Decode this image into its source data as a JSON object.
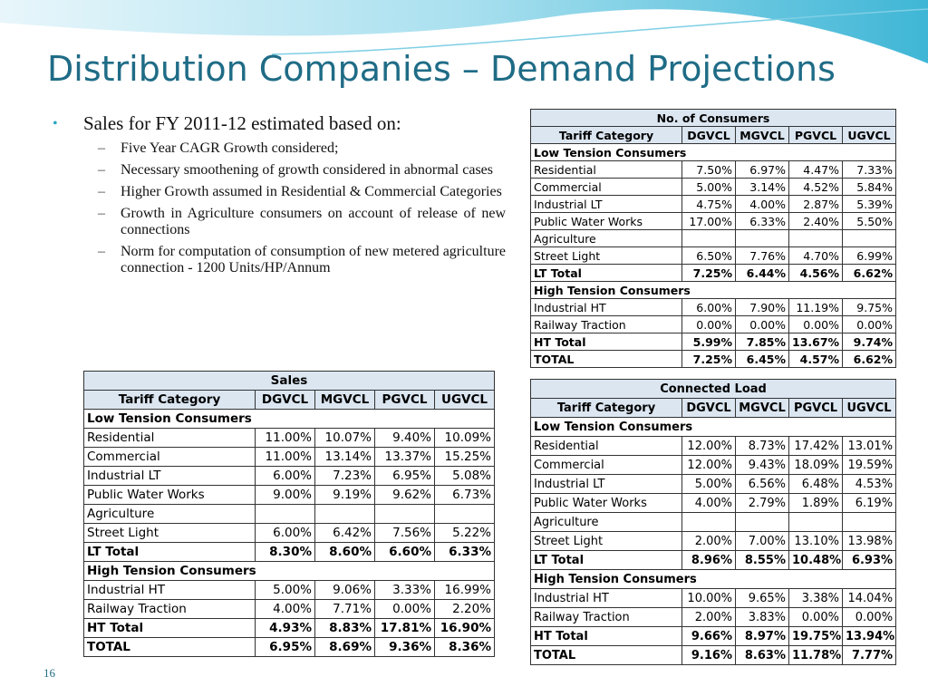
{
  "title": "Distribution Companies – Demand Projections",
  "bullets": {
    "main": "Sales for FY 2011-12 estimated based on:",
    "sub": [
      "Five Year CAGR Growth considered;",
      "Necessary smoothening of growth considered in abnormal cases",
      "Higher Growth assumed in Residential & Commercial Categories",
      "Growth in Agriculture consumers on account of release of new connections",
      "Norm for computation of consumption of new metered agriculture connection - 1200 Units/HP/Annum"
    ]
  },
  "columns": [
    "Tariff Category",
    "DGVCL",
    "MGVCL",
    "PGVCL",
    "UGVCL"
  ],
  "consumers": {
    "title": "No. of Consumers",
    "rows": [
      {
        "label": "Low Tension Consumers",
        "type": "section",
        "values": []
      },
      {
        "label": "Residential",
        "type": "row",
        "values": [
          "7.50%",
          "6.97%",
          "4.47%",
          "7.33%"
        ]
      },
      {
        "label": "Commercial",
        "type": "row",
        "values": [
          "5.00%",
          "3.14%",
          "4.52%",
          "5.84%"
        ]
      },
      {
        "label": "Industrial LT",
        "type": "row",
        "values": [
          "4.75%",
          "4.00%",
          "2.87%",
          "5.39%"
        ]
      },
      {
        "label": "Public Water Works",
        "type": "row",
        "values": [
          "17.00%",
          "6.33%",
          "2.40%",
          "5.50%"
        ]
      },
      {
        "label": "Agriculture",
        "type": "row",
        "values": [
          "",
          "",
          "",
          ""
        ]
      },
      {
        "label": "Street Light",
        "type": "row",
        "values": [
          "6.50%",
          "7.76%",
          "4.70%",
          "6.99%"
        ]
      },
      {
        "label": "LT Total",
        "type": "total",
        "values": [
          "7.25%",
          "6.44%",
          "4.56%",
          "6.62%"
        ]
      },
      {
        "label": "High Tension Consumers",
        "type": "section",
        "values": []
      },
      {
        "label": "Industrial HT",
        "type": "row",
        "values": [
          "6.00%",
          "7.90%",
          "11.19%",
          "9.75%"
        ]
      },
      {
        "label": "Railway Traction",
        "type": "row",
        "values": [
          "0.00%",
          "0.00%",
          "0.00%",
          "0.00%"
        ]
      },
      {
        "label": "HT Total",
        "type": "total",
        "values": [
          "5.99%",
          "7.85%",
          "13.67%",
          "9.74%"
        ]
      },
      {
        "label": "TOTAL",
        "type": "total",
        "values": [
          "7.25%",
          "6.45%",
          "4.57%",
          "6.62%"
        ]
      }
    ]
  },
  "sales": {
    "title": "Sales",
    "rows": [
      {
        "label": "Low Tension Consumers",
        "type": "section",
        "values": []
      },
      {
        "label": "Residential",
        "type": "row",
        "values": [
          "11.00%",
          "10.07%",
          "9.40%",
          "10.09%"
        ]
      },
      {
        "label": "Commercial",
        "type": "row",
        "values": [
          "11.00%",
          "13.14%",
          "13.37%",
          "15.25%"
        ]
      },
      {
        "label": "Industrial LT",
        "type": "row",
        "values": [
          "6.00%",
          "7.23%",
          "6.95%",
          "5.08%"
        ]
      },
      {
        "label": "Public Water Works",
        "type": "row",
        "values": [
          "9.00%",
          "9.19%",
          "9.62%",
          "6.73%"
        ]
      },
      {
        "label": "Agriculture",
        "type": "row",
        "values": [
          "",
          "",
          "",
          ""
        ]
      },
      {
        "label": "Street Light",
        "type": "row",
        "values": [
          "6.00%",
          "6.42%",
          "7.56%",
          "5.22%"
        ]
      },
      {
        "label": "LT Total",
        "type": "total",
        "values": [
          "8.30%",
          "8.60%",
          "6.60%",
          "6.33%"
        ]
      },
      {
        "label": "High Tension Consumers",
        "type": "section",
        "values": []
      },
      {
        "label": "Industrial HT",
        "type": "row",
        "values": [
          "5.00%",
          "9.06%",
          "3.33%",
          "16.99%"
        ]
      },
      {
        "label": "Railway Traction",
        "type": "row",
        "values": [
          "4.00%",
          "7.71%",
          "0.00%",
          "2.20%"
        ]
      },
      {
        "label": "HT Total",
        "type": "total",
        "values": [
          "4.93%",
          "8.83%",
          "17.81%",
          "16.90%"
        ]
      },
      {
        "label": "TOTAL",
        "type": "total",
        "values": [
          "6.95%",
          "8.69%",
          "9.36%",
          "8.36%"
        ]
      }
    ]
  },
  "load": {
    "title": "Connected Load",
    "rows": [
      {
        "label": "Low Tension Consumers",
        "type": "section",
        "values": []
      },
      {
        "label": "Residential",
        "type": "row",
        "values": [
          "12.00%",
          "8.73%",
          "17.42%",
          "13.01%"
        ]
      },
      {
        "label": "Commercial",
        "type": "row",
        "values": [
          "12.00%",
          "9.43%",
          "18.09%",
          "19.59%"
        ]
      },
      {
        "label": "Industrial LT",
        "type": "row",
        "values": [
          "5.00%",
          "6.56%",
          "6.48%",
          "4.53%"
        ]
      },
      {
        "label": "Public Water Works",
        "type": "row",
        "values": [
          "4.00%",
          "2.79%",
          "1.89%",
          "6.19%"
        ]
      },
      {
        "label": "Agriculture",
        "type": "row",
        "values": [
          "",
          "",
          "",
          ""
        ]
      },
      {
        "label": "Street Light",
        "type": "row",
        "values": [
          "2.00%",
          "7.00%",
          "13.10%",
          "13.98%"
        ]
      },
      {
        "label": "LT Total",
        "type": "total",
        "values": [
          "8.96%",
          "8.55%",
          "10.48%",
          "6.93%"
        ]
      },
      {
        "label": "High Tension Consumers",
        "type": "section",
        "values": []
      },
      {
        "label": "Industrial HT",
        "type": "row",
        "values": [
          "10.00%",
          "9.65%",
          "3.38%",
          "14.04%"
        ]
      },
      {
        "label": "Railway Traction",
        "type": "row",
        "values": [
          "2.00%",
          "3.83%",
          "0.00%",
          "0.00%"
        ]
      },
      {
        "label": "HT Total",
        "type": "total",
        "values": [
          "9.66%",
          "8.97%",
          "19.75%",
          "13.94%"
        ]
      },
      {
        "label": "TOTAL",
        "type": "total",
        "values": [
          "9.16%",
          "8.63%",
          "11.78%",
          "7.77%"
        ]
      }
    ]
  },
  "page_number": "16",
  "colors": {
    "title": "#1f6c86",
    "header_fill": "#dbe6f1",
    "bullet": "#2aa8c4"
  }
}
